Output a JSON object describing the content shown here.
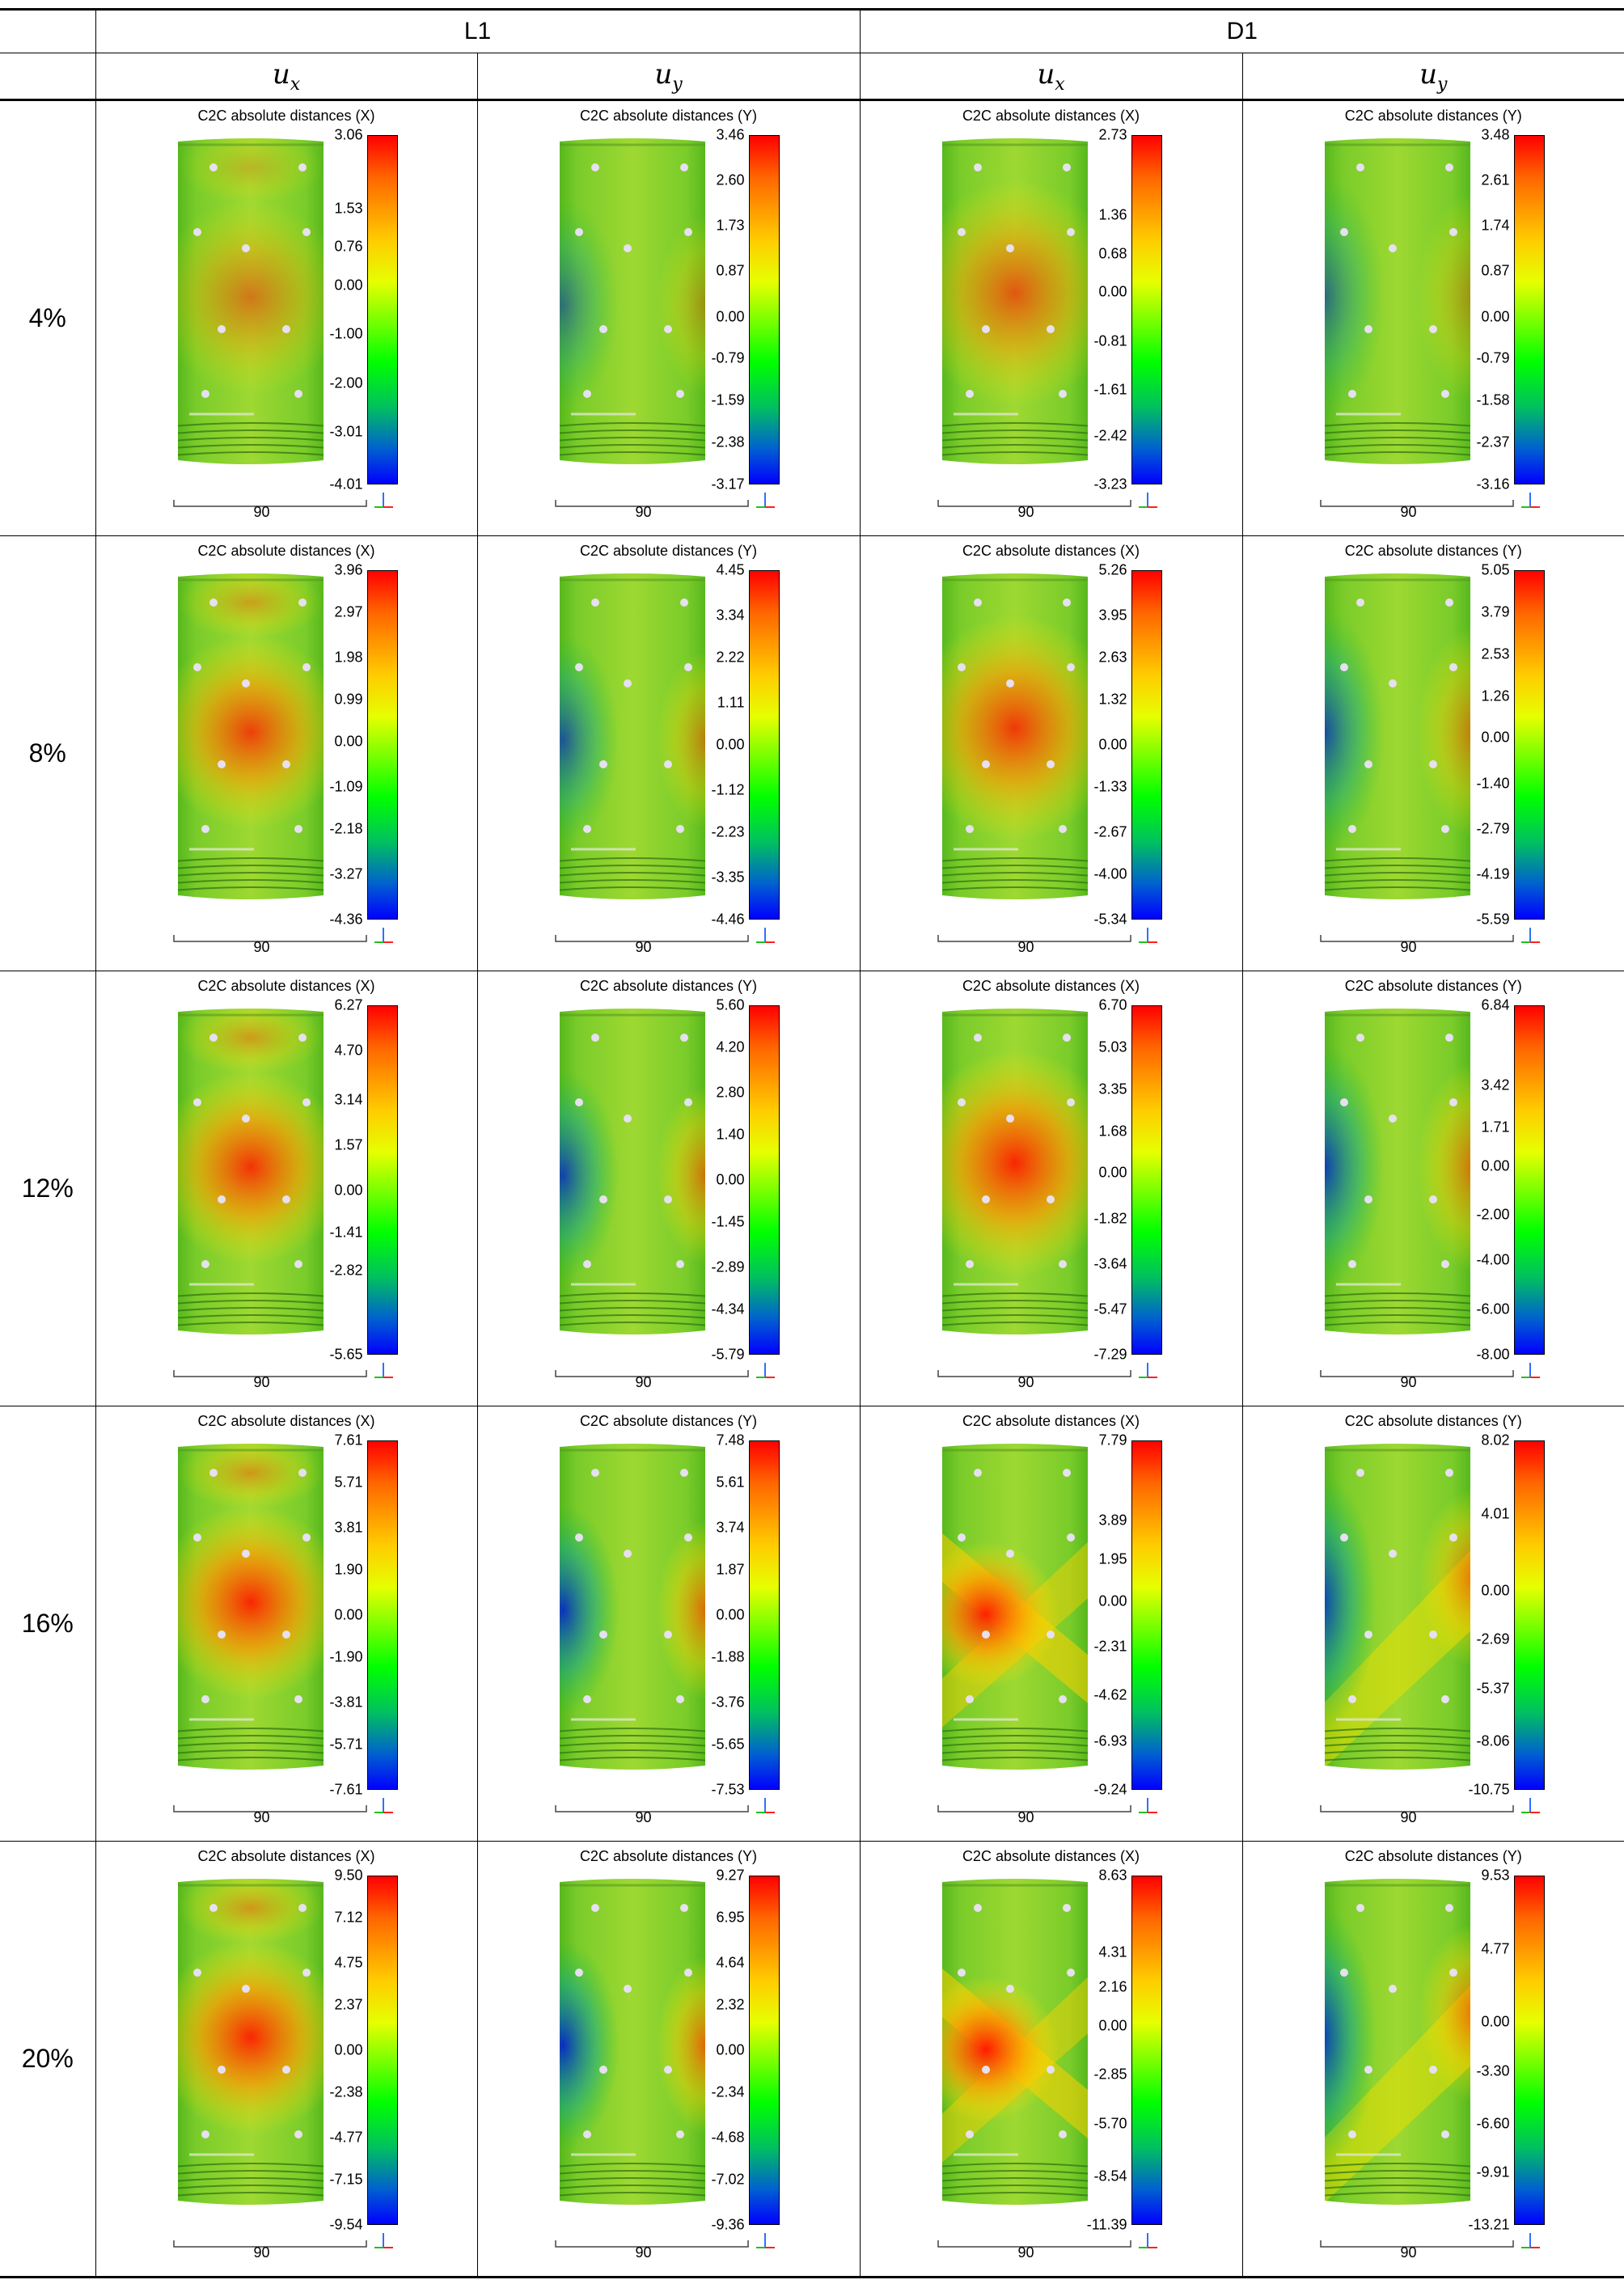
{
  "header": {
    "groups": [
      "L1",
      "D1"
    ],
    "subheaders": [
      {
        "sym": "u",
        "sub": "x"
      },
      {
        "sym": "u",
        "sub": "y"
      },
      {
        "sym": "u",
        "sub": "x"
      },
      {
        "sym": "u",
        "sub": "y"
      }
    ]
  },
  "scale_label": "90",
  "rows": [
    {
      "label": "4%",
      "plots": [
        {
          "title": "C2C absolute distances (X)",
          "pattern": "ux-L1",
          "intensity": 0.25,
          "ticks": [
            {
              "v": "3.06",
              "p": 0
            },
            {
              "v": "1.53",
              "p": 0.21
            },
            {
              "v": "0.76",
              "p": 0.32
            },
            {
              "v": "0.00",
              "p": 0.43
            },
            {
              "v": "-1.00",
              "p": 0.57
            },
            {
              "v": "-2.00",
              "p": 0.71
            },
            {
              "v": "-3.01",
              "p": 0.85
            },
            {
              "v": "-4.01",
              "p": 1
            }
          ]
        },
        {
          "title": "C2C absolute distances (Y)",
          "pattern": "uy-L1",
          "intensity": 0.15,
          "ticks": [
            {
              "v": "3.46",
              "p": 0
            },
            {
              "v": "2.60",
              "p": 0.13
            },
            {
              "v": "1.73",
              "p": 0.26
            },
            {
              "v": "0.87",
              "p": 0.39
            },
            {
              "v": "0.00",
              "p": 0.52
            },
            {
              "v": "-0.79",
              "p": 0.64
            },
            {
              "v": "-1.59",
              "p": 0.76
            },
            {
              "v": "-2.38",
              "p": 0.88
            },
            {
              "v": "-3.17",
              "p": 1
            }
          ]
        },
        {
          "title": "C2C absolute distances (X)",
          "pattern": "ux-D1",
          "intensity": 0.5,
          "ticks": [
            {
              "v": "2.73",
              "p": 0
            },
            {
              "v": "1.36",
              "p": 0.23
            },
            {
              "v": "0.68",
              "p": 0.34
            },
            {
              "v": "0.00",
              "p": 0.45
            },
            {
              "v": "-0.81",
              "p": 0.59
            },
            {
              "v": "-1.61",
              "p": 0.73
            },
            {
              "v": "-2.42",
              "p": 0.86
            },
            {
              "v": "-3.23",
              "p": 1
            }
          ]
        },
        {
          "title": "C2C absolute distances (Y)",
          "pattern": "uy-D1",
          "intensity": 0.2,
          "ticks": [
            {
              "v": "3.48",
              "p": 0
            },
            {
              "v": "2.61",
              "p": 0.13
            },
            {
              "v": "1.74",
              "p": 0.26
            },
            {
              "v": "0.87",
              "p": 0.39
            },
            {
              "v": "0.00",
              "p": 0.52
            },
            {
              "v": "-0.79",
              "p": 0.64
            },
            {
              "v": "-1.58",
              "p": 0.76
            },
            {
              "v": "-2.37",
              "p": 0.88
            },
            {
              "v": "-3.16",
              "p": 1
            }
          ]
        }
      ]
    },
    {
      "label": "8%",
      "plots": [
        {
          "title": "C2C absolute distances (X)",
          "pattern": "ux-L1",
          "intensity": 0.7,
          "ticks": [
            {
              "v": "3.96",
              "p": 0
            },
            {
              "v": "2.97",
              "p": 0.12
            },
            {
              "v": "1.98",
              "p": 0.25
            },
            {
              "v": "0.99",
              "p": 0.37
            },
            {
              "v": "0.00",
              "p": 0.49
            },
            {
              "v": "-1.09",
              "p": 0.62
            },
            {
              "v": "-2.18",
              "p": 0.74
            },
            {
              "v": "-3.27",
              "p": 0.87
            },
            {
              "v": "-4.36",
              "p": 1
            }
          ]
        },
        {
          "title": "C2C absolute distances (Y)",
          "pattern": "uy-L1",
          "intensity": 0.45,
          "ticks": [
            {
              "v": "4.45",
              "p": 0
            },
            {
              "v": "3.34",
              "p": 0.13
            },
            {
              "v": "2.22",
              "p": 0.25
            },
            {
              "v": "1.11",
              "p": 0.38
            },
            {
              "v": "0.00",
              "p": 0.5
            },
            {
              "v": "-1.12",
              "p": 0.63
            },
            {
              "v": "-2.23",
              "p": 0.75
            },
            {
              "v": "-3.35",
              "p": 0.88
            },
            {
              "v": "-4.46",
              "p": 1
            }
          ]
        },
        {
          "title": "C2C absolute distances (X)",
          "pattern": "ux-D1",
          "intensity": 0.75,
          "ticks": [
            {
              "v": "5.26",
              "p": 0
            },
            {
              "v": "3.95",
              "p": 0.13
            },
            {
              "v": "2.63",
              "p": 0.25
            },
            {
              "v": "1.32",
              "p": 0.37
            },
            {
              "v": "0.00",
              "p": 0.5
            },
            {
              "v": "-1.33",
              "p": 0.62
            },
            {
              "v": "-2.67",
              "p": 0.75
            },
            {
              "v": "-4.00",
              "p": 0.87
            },
            {
              "v": "-5.34",
              "p": 1
            }
          ]
        },
        {
          "title": "C2C absolute distances (Y)",
          "pattern": "uy-D1",
          "intensity": 0.55,
          "ticks": [
            {
              "v": "5.05",
              "p": 0
            },
            {
              "v": "3.79",
              "p": 0.12
            },
            {
              "v": "2.53",
              "p": 0.24
            },
            {
              "v": "1.26",
              "p": 0.36
            },
            {
              "v": "0.00",
              "p": 0.48
            },
            {
              "v": "-1.40",
              "p": 0.61
            },
            {
              "v": "-2.79",
              "p": 0.74
            },
            {
              "v": "-4.19",
              "p": 0.87
            },
            {
              "v": "-5.59",
              "p": 1
            }
          ]
        }
      ]
    },
    {
      "label": "12%",
      "plots": [
        {
          "title": "C2C absolute distances (X)",
          "pattern": "ux-L1",
          "intensity": 0.8,
          "ticks": [
            {
              "v": "6.27",
              "p": 0
            },
            {
              "v": "4.70",
              "p": 0.13
            },
            {
              "v": "3.14",
              "p": 0.27
            },
            {
              "v": "1.57",
              "p": 0.4
            },
            {
              "v": "0.00",
              "p": 0.53
            },
            {
              "v": "-1.41",
              "p": 0.65
            },
            {
              "v": "-2.82",
              "p": 0.76
            },
            {
              "v": "-5.65",
              "p": 1
            }
          ]
        },
        {
          "title": "C2C absolute distances (Y)",
          "pattern": "uy-L1",
          "intensity": 0.65,
          "ticks": [
            {
              "v": "5.60",
              "p": 0
            },
            {
              "v": "4.20",
              "p": 0.12
            },
            {
              "v": "2.80",
              "p": 0.25
            },
            {
              "v": "1.40",
              "p": 0.37
            },
            {
              "v": "0.00",
              "p": 0.5
            },
            {
              "v": "-1.45",
              "p": 0.62
            },
            {
              "v": "-2.89",
              "p": 0.75
            },
            {
              "v": "-4.34",
              "p": 0.87
            },
            {
              "v": "-5.79",
              "p": 1
            }
          ]
        },
        {
          "title": "C2C absolute distances (X)",
          "pattern": "ux-D1",
          "intensity": 0.9,
          "ticks": [
            {
              "v": "6.70",
              "p": 0
            },
            {
              "v": "5.03",
              "p": 0.12
            },
            {
              "v": "3.35",
              "p": 0.24
            },
            {
              "v": "1.68",
              "p": 0.36
            },
            {
              "v": "0.00",
              "p": 0.48
            },
            {
              "v": "-1.82",
              "p": 0.61
            },
            {
              "v": "-3.64",
              "p": 0.74
            },
            {
              "v": "-5.47",
              "p": 0.87
            },
            {
              "v": "-7.29",
              "p": 1
            }
          ]
        },
        {
          "title": "C2C absolute distances (Y)",
          "pattern": "uy-D1",
          "intensity": 0.7,
          "ticks": [
            {
              "v": "6.84",
              "p": 0
            },
            {
              "v": "3.42",
              "p": 0.23
            },
            {
              "v": "1.71",
              "p": 0.35
            },
            {
              "v": "0.00",
              "p": 0.46
            },
            {
              "v": "-2.00",
              "p": 0.6
            },
            {
              "v": "-4.00",
              "p": 0.73
            },
            {
              "v": "-6.00",
              "p": 0.87
            },
            {
              "v": "-8.00",
              "p": 1
            }
          ]
        }
      ]
    },
    {
      "label": "16%",
      "plots": [
        {
          "title": "C2C absolute distances (X)",
          "pattern": "ux-L1",
          "intensity": 0.9,
          "ticks": [
            {
              "v": "7.61",
              "p": 0
            },
            {
              "v": "5.71",
              "p": 0.12
            },
            {
              "v": "3.81",
              "p": 0.25
            },
            {
              "v": "1.90",
              "p": 0.37
            },
            {
              "v": "0.00",
              "p": 0.5
            },
            {
              "v": "-1.90",
              "p": 0.62
            },
            {
              "v": "-3.81",
              "p": 0.75
            },
            {
              "v": "-5.71",
              "p": 0.87
            },
            {
              "v": "-7.61",
              "p": 1
            }
          ]
        },
        {
          "title": "C2C absolute distances (Y)",
          "pattern": "uy-L1",
          "intensity": 0.8,
          "ticks": [
            {
              "v": "7.48",
              "p": 0
            },
            {
              "v": "5.61",
              "p": 0.12
            },
            {
              "v": "3.74",
              "p": 0.25
            },
            {
              "v": "1.87",
              "p": 0.37
            },
            {
              "v": "0.00",
              "p": 0.5
            },
            {
              "v": "-1.88",
              "p": 0.62
            },
            {
              "v": "-3.76",
              "p": 0.75
            },
            {
              "v": "-5.65",
              "p": 0.87
            },
            {
              "v": "-7.53",
              "p": 1
            }
          ]
        },
        {
          "title": "C2C absolute distances (X)",
          "pattern": "ux-D1-band",
          "intensity": 0.95,
          "ticks": [
            {
              "v": "7.79",
              "p": 0
            },
            {
              "v": "3.89",
              "p": 0.23
            },
            {
              "v": "1.95",
              "p": 0.34
            },
            {
              "v": "0.00",
              "p": 0.46
            },
            {
              "v": "-2.31",
              "p": 0.59
            },
            {
              "v": "-4.62",
              "p": 0.73
            },
            {
              "v": "-6.93",
              "p": 0.86
            },
            {
              "v": "-9.24",
              "p": 1
            }
          ]
        },
        {
          "title": "C2C absolute distances (Y)",
          "pattern": "uy-D1-band",
          "intensity": 0.8,
          "ticks": [
            {
              "v": "8.02",
              "p": 0
            },
            {
              "v": "4.01",
              "p": 0.21
            },
            {
              "v": "0.00",
              "p": 0.43
            },
            {
              "v": "-2.69",
              "p": 0.57
            },
            {
              "v": "-5.37",
              "p": 0.71
            },
            {
              "v": "-8.06",
              "p": 0.86
            },
            {
              "v": "-10.75",
              "p": 1
            }
          ]
        }
      ]
    },
    {
      "label": "20%",
      "plots": [
        {
          "title": "C2C absolute distances (X)",
          "pattern": "ux-L1",
          "intensity": 0.9,
          "ticks": [
            {
              "v": "9.50",
              "p": 0
            },
            {
              "v": "7.12",
              "p": 0.12
            },
            {
              "v": "4.75",
              "p": 0.25
            },
            {
              "v": "2.37",
              "p": 0.37
            },
            {
              "v": "0.00",
              "p": 0.5
            },
            {
              "v": "-2.38",
              "p": 0.62
            },
            {
              "v": "-4.77",
              "p": 0.75
            },
            {
              "v": "-7.15",
              "p": 0.87
            },
            {
              "v": "-9.54",
              "p": 1
            }
          ]
        },
        {
          "title": "C2C absolute distances (Y)",
          "pattern": "uy-L1",
          "intensity": 0.85,
          "ticks": [
            {
              "v": "9.27",
              "p": 0
            },
            {
              "v": "6.95",
              "p": 0.12
            },
            {
              "v": "4.64",
              "p": 0.25
            },
            {
              "v": "2.32",
              "p": 0.37
            },
            {
              "v": "0.00",
              "p": 0.5
            },
            {
              "v": "-2.34",
              "p": 0.62
            },
            {
              "v": "-4.68",
              "p": 0.75
            },
            {
              "v": "-7.02",
              "p": 0.87
            },
            {
              "v": "-9.36",
              "p": 1
            }
          ]
        },
        {
          "title": "C2C absolute distances (X)",
          "pattern": "ux-D1-band",
          "intensity": 1.0,
          "ticks": [
            {
              "v": "8.63",
              "p": 0
            },
            {
              "v": "4.31",
              "p": 0.22
            },
            {
              "v": "2.16",
              "p": 0.32
            },
            {
              "v": "0.00",
              "p": 0.43
            },
            {
              "v": "-2.85",
              "p": 0.57
            },
            {
              "v": "-5.70",
              "p": 0.71
            },
            {
              "v": "-8.54",
              "p": 0.86
            },
            {
              "v": "-11.39",
              "p": 1
            }
          ]
        },
        {
          "title": "C2C absolute distances (Y)",
          "pattern": "uy-D1-band",
          "intensity": 0.85,
          "ticks": [
            {
              "v": "9.53",
              "p": 0
            },
            {
              "v": "4.77",
              "p": 0.21
            },
            {
              "v": "0.00",
              "p": 0.42
            },
            {
              "v": "-3.30",
              "p": 0.56
            },
            {
              "v": "-6.60",
              "p": 0.71
            },
            {
              "v": "-9.91",
              "p": 0.85
            },
            {
              "v": "-13.21",
              "p": 1
            }
          ]
        }
      ]
    }
  ]
}
